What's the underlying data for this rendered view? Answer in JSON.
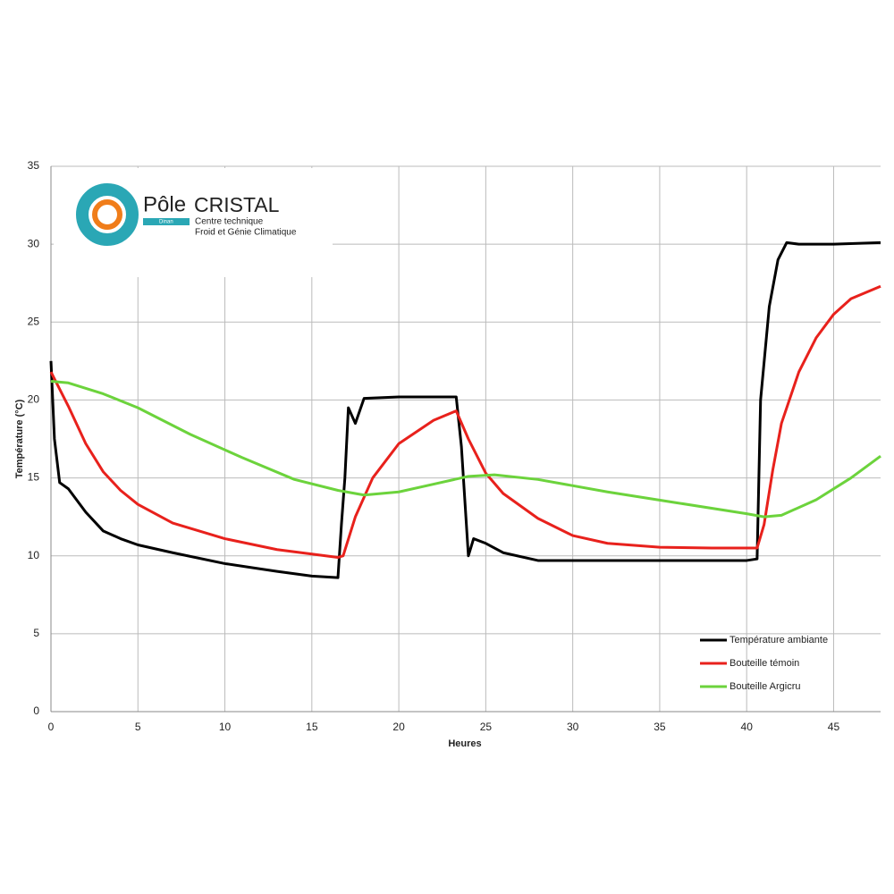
{
  "chart_data": {
    "type": "line",
    "y_label": "Température (°C)",
    "x_label": "Heures",
    "logo": {
      "brand_a": "Pôle",
      "brand_b": "CRISTAL",
      "line1": "Centre technique",
      "line2": "Froid et Génie Climatique",
      "tag": "Dinan"
    },
    "xlim": [
      0,
      47.7
    ],
    "ylim": [
      0,
      35
    ],
    "xticks": [
      0,
      5,
      10,
      15,
      20,
      25,
      30,
      35,
      40,
      45
    ],
    "yticks": [
      0,
      5,
      10,
      15,
      20,
      25,
      30,
      35
    ],
    "grid": true,
    "legend": "lower right",
    "series": [
      {
        "name": "Température ambiante",
        "color": "#000000",
        "x": [
          0,
          0.2,
          0.5,
          1,
          2,
          3,
          4,
          5,
          7,
          10,
          13,
          15,
          16.5,
          16.7,
          16.9,
          17.1,
          17.5,
          18,
          20,
          23.3,
          23.6,
          24,
          24.3,
          25,
          26,
          28,
          30,
          35,
          40,
          40.6,
          40.8,
          41.3,
          41.8,
          42.3,
          43,
          45,
          47.7
        ],
        "values": [
          22.5,
          17.5,
          14.7,
          14.3,
          12.8,
          11.6,
          11.1,
          10.7,
          10.2,
          9.5,
          9.0,
          8.7,
          8.6,
          12,
          15,
          19.5,
          18.5,
          20.1,
          20.2,
          20.2,
          17,
          10,
          11.1,
          10.8,
          10.2,
          9.7,
          9.7,
          9.7,
          9.7,
          9.8,
          20,
          26,
          29,
          30.1,
          30,
          30,
          30.1
        ]
      },
      {
        "name": "Bouteille témoin",
        "color": "#e8211c",
        "x": [
          0,
          1,
          2,
          3,
          4,
          5,
          7,
          10,
          13,
          16.5,
          16.8,
          17.5,
          18.5,
          20,
          22,
          23.3,
          24,
          25,
          26,
          28,
          30,
          32,
          35,
          38,
          40.6,
          41,
          41.5,
          42,
          43,
          44,
          45,
          46,
          47.7
        ],
        "values": [
          21.8,
          19.6,
          17.2,
          15.4,
          14.2,
          13.3,
          12.1,
          11.1,
          10.4,
          9.9,
          10,
          12.5,
          15.0,
          17.2,
          18.7,
          19.3,
          17.5,
          15.3,
          14.0,
          12.4,
          11.3,
          10.8,
          10.55,
          10.5,
          10.5,
          12,
          15.5,
          18.5,
          21.8,
          24.0,
          25.5,
          26.5,
          27.3
        ]
      },
      {
        "name": "Bouteille Argicru",
        "color": "#6cd33c",
        "x": [
          0,
          1,
          3,
          5,
          8,
          11,
          14,
          16.5,
          18,
          20,
          22,
          24,
          25.5,
          28,
          32,
          36,
          40,
          41,
          42,
          44,
          46,
          47.7
        ],
        "values": [
          21.2,
          21.1,
          20.4,
          19.5,
          17.8,
          16.3,
          14.9,
          14.2,
          13.9,
          14.1,
          14.6,
          15.1,
          15.2,
          14.9,
          14.1,
          13.4,
          12.7,
          12.5,
          12.6,
          13.6,
          15.0,
          16.4
        ]
      }
    ]
  }
}
